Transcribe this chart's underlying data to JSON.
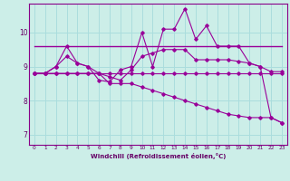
{
  "xlabel": "Windchill (Refroidissement éolien,°C)",
  "bg_color": "#cceee8",
  "grid_color": "#aadddd",
  "line_color": "#990099",
  "xlim": [
    -0.5,
    23.5
  ],
  "ylim": [
    6.7,
    10.85
  ],
  "yticks": [
    7,
    8,
    9,
    10
  ],
  "xticks": [
    0,
    1,
    2,
    3,
    4,
    5,
    6,
    7,
    8,
    9,
    10,
    11,
    12,
    13,
    14,
    15,
    16,
    17,
    18,
    19,
    20,
    21,
    22,
    23
  ],
  "series_flat": [
    9.6,
    9.6,
    9.6,
    9.6,
    9.6,
    9.6,
    9.6,
    9.6,
    9.6,
    9.6,
    9.6,
    9.6,
    9.6,
    9.6,
    9.6,
    9.6,
    9.6,
    9.6,
    9.6,
    9.6,
    9.6,
    9.6,
    9.6,
    9.6
  ],
  "series_smooth_y": [
    8.8,
    8.8,
    9.0,
    9.3,
    9.1,
    9.0,
    8.8,
    8.7,
    8.6,
    8.9,
    9.3,
    9.4,
    9.5,
    9.5,
    9.5,
    9.2,
    9.2,
    9.2,
    9.2,
    9.15,
    9.1,
    9.0,
    8.85,
    8.85
  ],
  "series_volatile_y": [
    8.8,
    8.8,
    9.0,
    9.6,
    9.1,
    9.0,
    8.6,
    8.55,
    8.9,
    9.0,
    10.0,
    9.0,
    10.1,
    10.1,
    10.7,
    9.8,
    10.2,
    9.6,
    9.6,
    9.6,
    9.1,
    9.0,
    7.5,
    7.35
  ],
  "series_decline_y": [
    8.8,
    8.8,
    8.8,
    8.8,
    8.8,
    8.8,
    8.8,
    8.5,
    8.5,
    8.5,
    8.4,
    8.3,
    8.2,
    8.1,
    8.0,
    7.9,
    7.8,
    7.7,
    7.6,
    7.55,
    7.5,
    7.5,
    7.5,
    7.35
  ],
  "series_low_flat_y": [
    8.8,
    8.8,
    8.8,
    8.8,
    8.8,
    8.8,
    8.8,
    8.8,
    8.8,
    8.8,
    8.8,
    8.8,
    8.8,
    8.8,
    8.8,
    8.8,
    8.8,
    8.8,
    8.8,
    8.8,
    8.8,
    8.8,
    8.8,
    8.8
  ]
}
